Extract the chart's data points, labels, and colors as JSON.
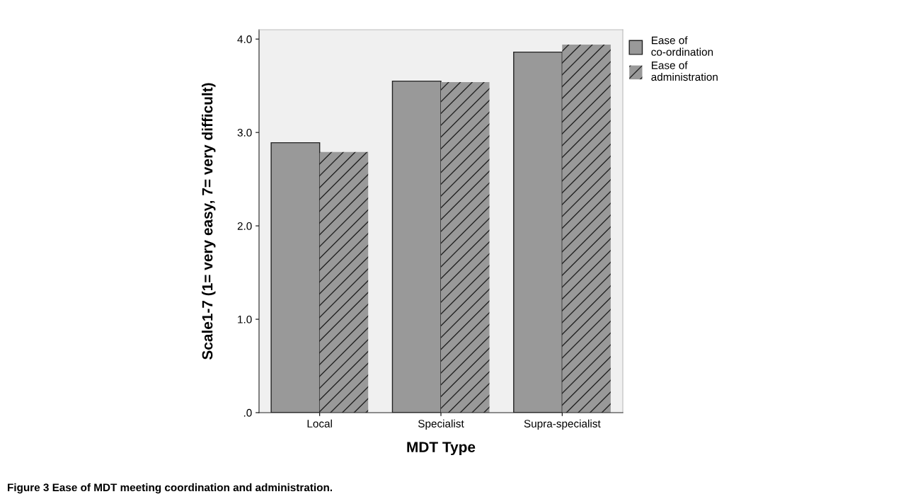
{
  "chart_data": {
    "type": "bar",
    "categories": [
      "Local",
      "Specialist",
      "Supra-specialist"
    ],
    "series": [
      {
        "name": "Ease of co-ordination",
        "color": "#999999",
        "values": [
          2.89,
          3.55,
          3.86
        ]
      },
      {
        "name": "Ease of administration",
        "color": "#999999",
        "values": [
          2.79,
          3.54,
          3.94
        ]
      }
    ],
    "xlabel": "MDT Type",
    "ylabel": "Scale1-7 (1= very easy, 7= very difficult)",
    "ylim": [
      0,
      4.1
    ],
    "yticks": [
      {
        "value": 0,
        "label": ".0"
      },
      {
        "value": 1,
        "label": "1.0"
      },
      {
        "value": 2,
        "label": "2.0"
      },
      {
        "value": 3,
        "label": "3.0"
      },
      {
        "value": 4,
        "label": "4.0"
      }
    ],
    "grid": false,
    "legend": "top right",
    "annotations": [
      "Figure 3 Ease of MDT meeting coordination and administration."
    ]
  }
}
